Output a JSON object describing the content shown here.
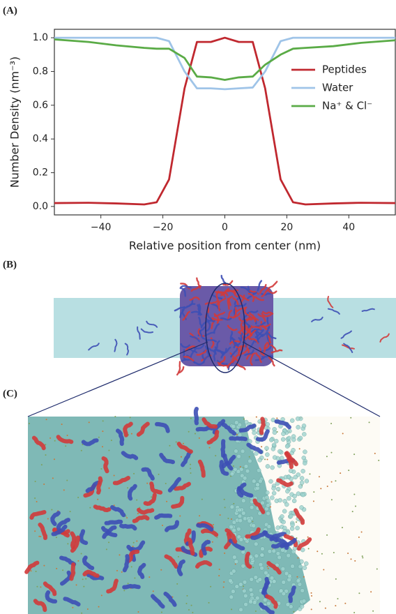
{
  "panels": {
    "a": "(A)",
    "b": "(B)",
    "c": "(C)"
  },
  "chart_data": {
    "type": "line",
    "xlabel": "Relative position from center (nm)",
    "ylabel": "Number Density (nm⁻³)",
    "x": [
      -55,
      -44,
      -35,
      -26,
      -22,
      -18,
      -13,
      -9,
      -4.5,
      0,
      4.5,
      9,
      13,
      18,
      22,
      26,
      35,
      44,
      55
    ],
    "series": [
      {
        "name": "Peptides",
        "color": "#c0282f",
        "values": [
          0.02,
          0.022,
          0.018,
          0.012,
          0.025,
          0.16,
          0.7,
          0.975,
          0.975,
          1.0,
          0.975,
          0.975,
          0.7,
          0.16,
          0.025,
          0.012,
          0.018,
          0.022,
          0.02
        ]
      },
      {
        "name": "Water",
        "color": "#9fc4e8",
        "values": [
          1.0,
          1.0,
          1.0,
          1.0,
          1.0,
          0.98,
          0.8,
          0.7,
          0.7,
          0.695,
          0.7,
          0.705,
          0.8,
          0.98,
          1.0,
          1.0,
          1.0,
          1.0,
          1.0
        ]
      },
      {
        "name": "Na⁺ & Cl⁻",
        "color": "#5aab46",
        "values": [
          0.99,
          0.975,
          0.955,
          0.94,
          0.935,
          0.935,
          0.88,
          0.77,
          0.765,
          0.75,
          0.765,
          0.77,
          0.84,
          0.9,
          0.935,
          0.94,
          0.95,
          0.97,
          0.985
        ]
      }
    ],
    "xlim": [
      -55,
      55
    ],
    "xticks": [
      {
        "value": -40,
        "label": "−40"
      },
      {
        "value": -20,
        "label": "−20"
      },
      0,
      20,
      40
    ],
    "ylim": [
      -0.05,
      1.05
    ],
    "yticks": [
      {
        "value": 0,
        "label": "0.0"
      },
      0.2,
      0.4,
      0.6,
      0.8,
      {
        "value": 1,
        "label": "1.0"
      }
    ],
    "legend": "right"
  }
}
